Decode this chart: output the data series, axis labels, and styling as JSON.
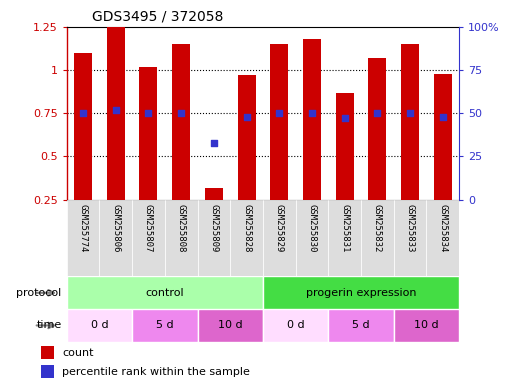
{
  "title": "GDS3495 / 372058",
  "samples": [
    "GSM255774",
    "GSM255806",
    "GSM255807",
    "GSM255808",
    "GSM255809",
    "GSM255828",
    "GSM255829",
    "GSM255830",
    "GSM255831",
    "GSM255832",
    "GSM255833",
    "GSM255834"
  ],
  "bar_values": [
    1.1,
    1.25,
    1.02,
    1.15,
    0.32,
    0.97,
    1.15,
    1.18,
    0.87,
    1.07,
    1.15,
    0.98
  ],
  "dot_values": [
    0.75,
    0.77,
    0.75,
    0.75,
    0.58,
    0.73,
    0.75,
    0.75,
    0.72,
    0.75,
    0.75,
    0.73
  ],
  "ylim": [
    0.25,
    1.25
  ],
  "y2lim": [
    0,
    100
  ],
  "yticks": [
    0.25,
    0.5,
    0.75,
    1.0,
    1.25
  ],
  "y2ticks": [
    0,
    25,
    50,
    75,
    100
  ],
  "bar_color": "#cc0000",
  "dot_color": "#3333cc",
  "protocol_groups": [
    {
      "label": "control",
      "start": 0,
      "end": 6,
      "color": "#aaffaa"
    },
    {
      "label": "progerin expression",
      "start": 6,
      "end": 12,
      "color": "#44dd44"
    }
  ],
  "time_groups": [
    {
      "label": "0 d",
      "start": 0,
      "end": 2,
      "color": "#ffddff"
    },
    {
      "label": "5 d",
      "start": 2,
      "end": 4,
      "color": "#ee88ee"
    },
    {
      "label": "10 d",
      "start": 4,
      "end": 6,
      "color": "#dd66cc"
    },
    {
      "label": "0 d",
      "start": 6,
      "end": 8,
      "color": "#ffddff"
    },
    {
      "label": "5 d",
      "start": 8,
      "end": 10,
      "color": "#ee88ee"
    },
    {
      "label": "10 d",
      "start": 10,
      "end": 12,
      "color": "#dd66cc"
    }
  ],
  "legend_items": [
    {
      "label": "count",
      "color": "#cc0000"
    },
    {
      "label": "percentile rank within the sample",
      "color": "#3333cc"
    }
  ],
  "grid_yticks": [
    0.5,
    0.75,
    1.0
  ]
}
